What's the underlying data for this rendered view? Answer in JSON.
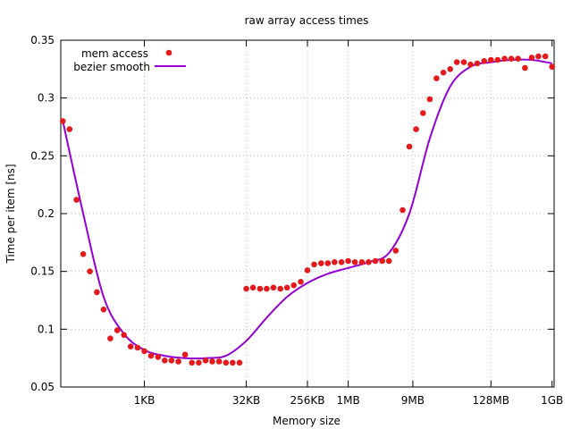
{
  "chart_data": {
    "type": "scatter",
    "title": "raw array access times",
    "xlabel": "Memory size",
    "ylabel": "Time per item [ns]",
    "x_scale": "log2",
    "xlim_log2": [
      5.9,
      30.1
    ],
    "ylim": [
      0.05,
      0.35
    ],
    "y_ticks": [
      0.05,
      0.1,
      0.15,
      0.2,
      0.25,
      0.3,
      0.35
    ],
    "y_tick_labels": [
      "0.05",
      "0.1",
      "0.15",
      "0.2",
      "0.25",
      "0.3",
      "0.35"
    ],
    "x_ticks_log2": [
      10,
      15,
      18,
      20,
      23.17,
      27,
      30
    ],
    "x_tick_labels": [
      "1KB",
      "32KB",
      "256KB",
      "1MB",
      "9MB",
      "128MB",
      "1GB"
    ],
    "grid": true,
    "legend_position": "top-left",
    "series": [
      {
        "name": "mem access",
        "kind": "points",
        "color": "#e41a1c",
        "x_log2": [
          6.0,
          6.33,
          6.67,
          7.0,
          7.33,
          7.67,
          8.0,
          8.33,
          8.67,
          9.0,
          9.33,
          9.67,
          10.0,
          10.33,
          10.67,
          11.0,
          11.33,
          11.67,
          12.0,
          12.33,
          12.67,
          13.0,
          13.33,
          13.67,
          14.0,
          14.33,
          14.67,
          15.0,
          15.33,
          15.67,
          16.0,
          16.33,
          16.67,
          17.0,
          17.33,
          17.67,
          18.0,
          18.33,
          18.67,
          19.0,
          19.33,
          19.67,
          20.0,
          20.33,
          20.67,
          21.0,
          21.33,
          21.67,
          22.0,
          22.33,
          22.67,
          23.0,
          23.33,
          23.67,
          24.0,
          24.33,
          24.67,
          25.0,
          25.33,
          25.67,
          26.0,
          26.33,
          26.67,
          27.0,
          27.33,
          27.67,
          28.0,
          28.33,
          28.67,
          29.0,
          29.33,
          29.67,
          30.0
        ],
        "y": [
          0.28,
          0.273,
          0.212,
          0.165,
          0.15,
          0.132,
          0.117,
          0.092,
          0.099,
          0.095,
          0.085,
          0.084,
          0.081,
          0.077,
          0.076,
          0.073,
          0.073,
          0.072,
          0.078,
          0.071,
          0.071,
          0.073,
          0.072,
          0.072,
          0.071,
          0.071,
          0.071,
          0.135,
          0.136,
          0.135,
          0.135,
          0.136,
          0.135,
          0.136,
          0.138,
          0.141,
          0.151,
          0.156,
          0.157,
          0.157,
          0.158,
          0.158,
          0.159,
          0.158,
          0.158,
          0.158,
          0.159,
          0.159,
          0.159,
          0.168,
          0.203,
          0.258,
          0.273,
          0.287,
          0.299,
          0.317,
          0.322,
          0.325,
          0.331,
          0.331,
          0.329,
          0.33,
          0.332,
          0.333,
          0.333,
          0.334,
          0.334,
          0.334,
          0.326,
          0.335,
          0.336,
          0.336,
          0.327
        ]
      },
      {
        "name": "bezier smooth",
        "kind": "line",
        "color": "#9400d3",
        "x_log2": [
          6.0,
          7.0,
          8.0,
          9.0,
          10.0,
          11.0,
          12.0,
          13.0,
          14.0,
          15.0,
          16.0,
          17.0,
          18.0,
          19.0,
          20.0,
          21.0,
          22.0,
          23.0,
          24.0,
          25.0,
          26.0,
          27.0,
          28.0,
          29.0,
          30.0
        ],
        "y": [
          0.28,
          0.2,
          0.128,
          0.096,
          0.082,
          0.077,
          0.075,
          0.075,
          0.077,
          0.09,
          0.11,
          0.128,
          0.14,
          0.148,
          0.153,
          0.158,
          0.166,
          0.2,
          0.265,
          0.31,
          0.327,
          0.331,
          0.333,
          0.333,
          0.33
        ]
      }
    ]
  }
}
